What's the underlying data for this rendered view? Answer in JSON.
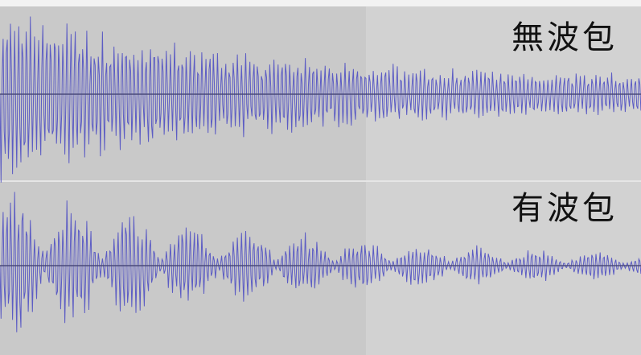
{
  "panels": [
    {
      "label": "無波包"
    },
    {
      "label": "有波包"
    }
  ]
}
